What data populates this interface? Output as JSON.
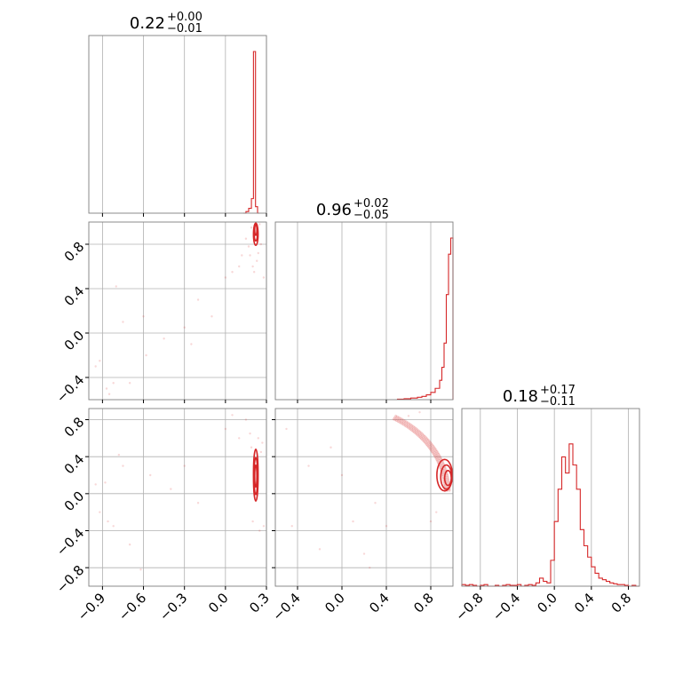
{
  "chart_data": {
    "type": "corner",
    "color": "#d62728",
    "grid": true,
    "parameters": [
      {
        "title": {
          "value": "0.22",
          "plus": "+0.00",
          "minus": "−0.01"
        },
        "range": [
          -1.0,
          0.3
        ],
        "ticks": [
          -0.9,
          -0.6,
          -0.3,
          0.0,
          0.3
        ],
        "tick_labels": [
          "−0.9",
          "−0.6",
          "−0.3",
          "0.0",
          "0.3"
        ],
        "hist": {
          "bin_edges": [
            0.13,
            0.15,
            0.17,
            0.19,
            0.205,
            0.22,
            0.235,
            0.25
          ],
          "counts": [
            0.0,
            0.01,
            0.03,
            0.09,
            1.0,
            0.04,
            0.0
          ]
        }
      },
      {
        "title": {
          "value": "0.96",
          "plus": "+0.02",
          "minus": "−0.05"
        },
        "range": [
          -0.6,
          1.0
        ],
        "ticks": [
          -0.4,
          0.0,
          0.4,
          0.8
        ],
        "tick_labels": [
          "−0.4",
          "0.0",
          "0.4",
          "0.8"
        ],
        "hist": {
          "bin_edges": [
            0.5,
            0.56,
            0.62,
            0.68,
            0.72,
            0.76,
            0.8,
            0.84,
            0.88,
            0.9,
            0.92,
            0.94,
            0.96,
            0.98,
            1.0
          ],
          "counts": [
            0.003,
            0.006,
            0.01,
            0.015,
            0.02,
            0.03,
            0.045,
            0.07,
            0.12,
            0.2,
            0.35,
            0.65,
            0.9,
            1.0
          ]
        }
      },
      {
        "title": {
          "value": "0.18",
          "plus": "+0.17",
          "minus": "−0.11"
        },
        "range": [
          -1.0,
          0.92
        ],
        "ticks": [
          -0.8,
          -0.4,
          0.0,
          0.4,
          0.8
        ],
        "tick_labels": [
          "−0.8",
          "−0.4",
          "0.0",
          "0.4",
          "0.8"
        ],
        "hist": {
          "bin_edges": [
            -1.0,
            -0.96,
            -0.92,
            -0.88,
            -0.84,
            -0.8,
            -0.76,
            -0.72,
            -0.68,
            -0.64,
            -0.6,
            -0.56,
            -0.52,
            -0.48,
            -0.44,
            -0.4,
            -0.36,
            -0.32,
            -0.28,
            -0.24,
            -0.2,
            -0.16,
            -0.12,
            -0.08,
            -0.04,
            0.0,
            0.04,
            0.08,
            0.12,
            0.16,
            0.2,
            0.24,
            0.28,
            0.32,
            0.36,
            0.4,
            0.44,
            0.48,
            0.52,
            0.56,
            0.6,
            0.64,
            0.68,
            0.72,
            0.76,
            0.8,
            0.84,
            0.88,
            0.92
          ],
          "counts": [
            0.01,
            0.005,
            0.01,
            0.005,
            0.0,
            0.005,
            0.01,
            0.0,
            0.0,
            0.005,
            0.0,
            0.005,
            0.01,
            0.005,
            0.005,
            0.01,
            0.0,
            0.005,
            0.01,
            0.005,
            0.02,
            0.05,
            0.03,
            0.02,
            0.16,
            0.4,
            0.6,
            0.8,
            0.7,
            0.88,
            0.75,
            0.6,
            0.35,
            0.25,
            0.18,
            0.12,
            0.08,
            0.05,
            0.04,
            0.03,
            0.02,
            0.015,
            0.01,
            0.01,
            0.005,
            0.0,
            0.005,
            0.0
          ]
        }
      }
    ],
    "pairs": [
      {
        "x_param": 0,
        "y_param": 1,
        "contours": [
          {
            "cx": 0.222,
            "cy": 0.93,
            "rx": 0.008,
            "ry": 0.05
          },
          {
            "cx": 0.222,
            "cy": 0.91,
            "rx": 0.013,
            "ry": 0.08
          },
          {
            "cx": 0.222,
            "cy": 0.89,
            "rx": 0.017,
            "ry": 0.1
          }
        ],
        "scatter": [
          [
            -0.95,
            -0.3
          ],
          [
            -0.92,
            -0.25
          ],
          [
            -0.87,
            -0.5
          ],
          [
            -0.85,
            -0.55
          ],
          [
            -0.82,
            -0.45
          ],
          [
            -0.8,
            0.42
          ],
          [
            -0.75,
            0.1
          ],
          [
            -0.7,
            -0.45
          ],
          [
            -0.6,
            0.15
          ],
          [
            -0.58,
            -0.2
          ],
          [
            -0.45,
            -0.05
          ],
          [
            -0.3,
            0.05
          ],
          [
            -0.25,
            -0.1
          ],
          [
            -0.2,
            0.3
          ],
          [
            -0.1,
            0.15
          ],
          [
            0.0,
            0.5
          ],
          [
            0.05,
            0.55
          ],
          [
            0.1,
            0.6
          ],
          [
            0.12,
            0.7
          ],
          [
            0.15,
            0.85
          ],
          [
            0.18,
            0.7
          ],
          [
            0.2,
            0.6
          ],
          [
            0.24,
            0.72
          ],
          [
            0.26,
            0.8
          ],
          [
            0.28,
            0.5
          ],
          [
            0.19,
            0.95
          ],
          [
            0.25,
            0.98
          ],
          [
            0.21,
            0.55
          ],
          [
            0.23,
            0.65
          ],
          [
            0.17,
            0.78
          ]
        ]
      },
      {
        "x_param": 0,
        "y_param": 2,
        "contours": [
          {
            "cx": 0.222,
            "cy": 0.19,
            "rx": 0.008,
            "ry": 0.12
          },
          {
            "cx": 0.222,
            "cy": 0.19,
            "rx": 0.013,
            "ry": 0.2
          },
          {
            "cx": 0.222,
            "cy": 0.2,
            "rx": 0.017,
            "ry": 0.28
          }
        ],
        "scatter": [
          [
            -0.95,
            0.1
          ],
          [
            -0.92,
            -0.2
          ],
          [
            -0.88,
            0.12
          ],
          [
            -0.86,
            -0.3
          ],
          [
            -0.82,
            -0.35
          ],
          [
            -0.78,
            0.42
          ],
          [
            -0.75,
            0.3
          ],
          [
            -0.7,
            -0.55
          ],
          [
            -0.62,
            -0.82
          ],
          [
            -0.55,
            0.2
          ],
          [
            -0.4,
            0.05
          ],
          [
            -0.3,
            0.3
          ],
          [
            -0.2,
            -0.1
          ],
          [
            0.0,
            0.7
          ],
          [
            0.05,
            0.85
          ],
          [
            0.1,
            0.6
          ],
          [
            0.15,
            0.8
          ],
          [
            0.18,
            0.65
          ],
          [
            0.27,
            0.55
          ],
          [
            0.28,
            -0.35
          ],
          [
            0.25,
            -0.4
          ],
          [
            0.2,
            -0.3
          ],
          [
            0.24,
            0.6
          ],
          [
            0.19,
            0.5
          ],
          [
            0.26,
            0.45
          ]
        ]
      },
      {
        "x_param": 1,
        "y_param": 2,
        "contours": [
          {
            "cx": 0.955,
            "cy": 0.17,
            "rx": 0.03,
            "ry": 0.08
          },
          {
            "cx": 0.94,
            "cy": 0.18,
            "rx": 0.05,
            "ry": 0.13
          },
          {
            "cx": 0.925,
            "cy": 0.2,
            "rx": 0.07,
            "ry": 0.17
          }
        ],
        "arc": {
          "radius": 0.97,
          "angle_deg_start": 2,
          "angle_deg_end": 60
        },
        "scatter": [
          [
            -0.5,
            0.7
          ],
          [
            -0.45,
            -0.35
          ],
          [
            -0.3,
            0.3
          ],
          [
            -0.2,
            -0.6
          ],
          [
            -0.1,
            0.5
          ],
          [
            0.0,
            0.2
          ],
          [
            0.1,
            -0.3
          ],
          [
            0.2,
            -0.65
          ],
          [
            0.25,
            -0.8
          ],
          [
            0.3,
            -0.1
          ],
          [
            0.4,
            -0.35
          ],
          [
            0.8,
            -0.3
          ],
          [
            0.85,
            -0.2
          ],
          [
            0.7,
            0.88
          ],
          [
            0.6,
            0.84
          ]
        ]
      }
    ]
  }
}
